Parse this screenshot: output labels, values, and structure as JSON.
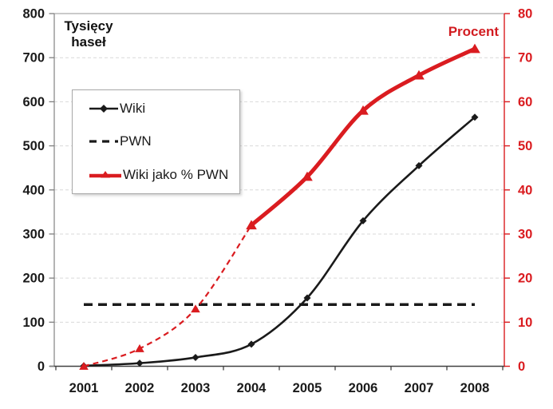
{
  "chart_data": {
    "type": "line",
    "x_categories": [
      "2001",
      "2002",
      "2003",
      "2004",
      "2005",
      "2006",
      "2007",
      "2008"
    ],
    "left_axis": {
      "title_line1": "Tysięcy",
      "title_line2": "haseł",
      "min": 0,
      "max": 800,
      "step": 100,
      "ticks": [
        0,
        100,
        200,
        300,
        400,
        500,
        600,
        700,
        800
      ]
    },
    "right_axis": {
      "title": "Procent",
      "min": 0,
      "max": 80,
      "step": 10,
      "ticks": [
        0,
        10,
        20,
        30,
        40,
        50,
        60,
        70,
        80
      ]
    },
    "series": [
      {
        "name": "Wiki",
        "axis": "left",
        "color": "#1a1a1a",
        "line_style": "solid",
        "marker": "diamond",
        "values": [
          1,
          7,
          20,
          50,
          155,
          330,
          455,
          565
        ]
      },
      {
        "name": "PWN",
        "axis": "left",
        "color": "#1a1a1a",
        "line_style": "dashed",
        "marker": "none",
        "values": [
          140,
          140,
          140,
          140,
          140,
          140,
          140,
          140
        ]
      },
      {
        "name": "Wiki jako % PWN",
        "axis": "right",
        "color": "#da1c20",
        "line_style": "dashed-then-solid",
        "solid_from_index": 3,
        "marker": "triangle",
        "values": [
          0,
          4,
          13,
          32,
          43,
          58,
          66,
          72
        ]
      }
    ],
    "legend": {
      "position": "upper-left",
      "entries": [
        "Wiki",
        "PWN",
        "Wiki jako % PWN"
      ]
    },
    "grid": {
      "horizontal": "dashed",
      "color": "#d9d9d9"
    },
    "colors": {
      "red": "#da1c20",
      "black": "#1a1a1a",
      "left_axis_line": "#8c8c8c",
      "bottom_axis_line": "#404040",
      "top_border": "#ababab",
      "tick_gray": "#7f7f7f"
    }
  }
}
